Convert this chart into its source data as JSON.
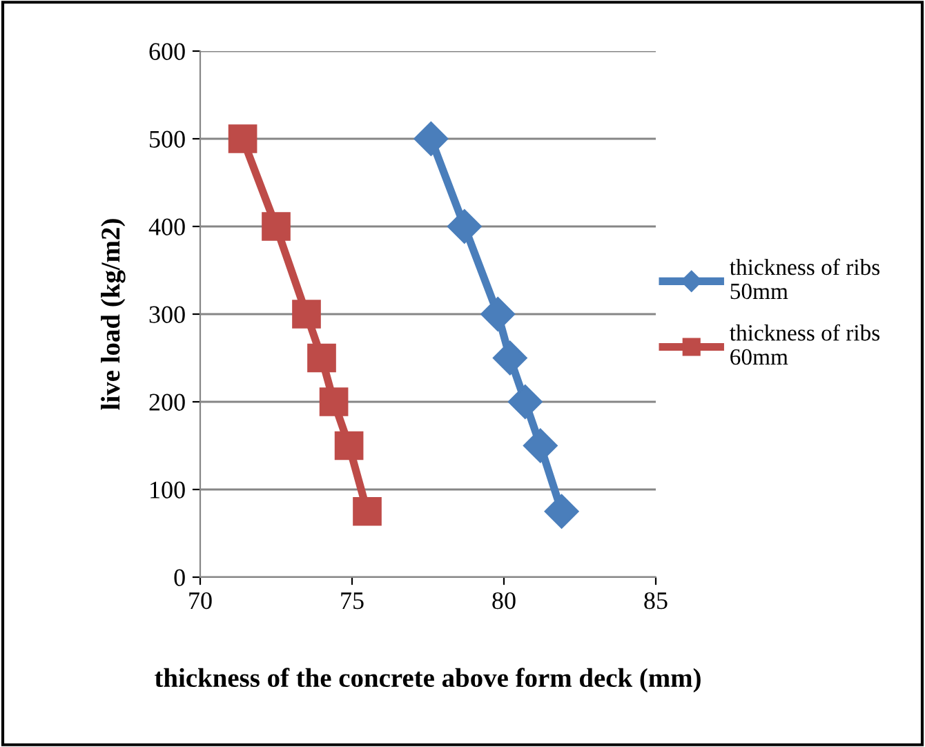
{
  "chart_data": {
    "type": "line",
    "xlabel": "thickness of the concrete above form deck (mm)",
    "ylabel": "live load (kg/m2)",
    "series": [
      {
        "name": "thickness of ribs 50mm",
        "color": "#4a7ebb",
        "marker": "diamond",
        "x": [
          77.6,
          78.7,
          79.8,
          80.2,
          80.7,
          81.2,
          81.9
        ],
        "values": [
          500,
          400,
          300,
          250,
          200,
          150,
          75
        ]
      },
      {
        "name": "thickness of ribs 60mm",
        "color": "#be4b48",
        "marker": "square",
        "x": [
          71.4,
          72.5,
          73.5,
          74.0,
          74.4,
          74.9,
          75.5
        ],
        "values": [
          500,
          400,
          300,
          250,
          200,
          150,
          75
        ]
      }
    ],
    "xlim": [
      70,
      85
    ],
    "xticks": [
      70,
      75,
      80,
      85
    ],
    "ylim": [
      0,
      600
    ],
    "yticks": [
      0,
      100,
      200,
      300,
      400,
      500,
      600
    ],
    "grid": "y",
    "legend": "right"
  }
}
